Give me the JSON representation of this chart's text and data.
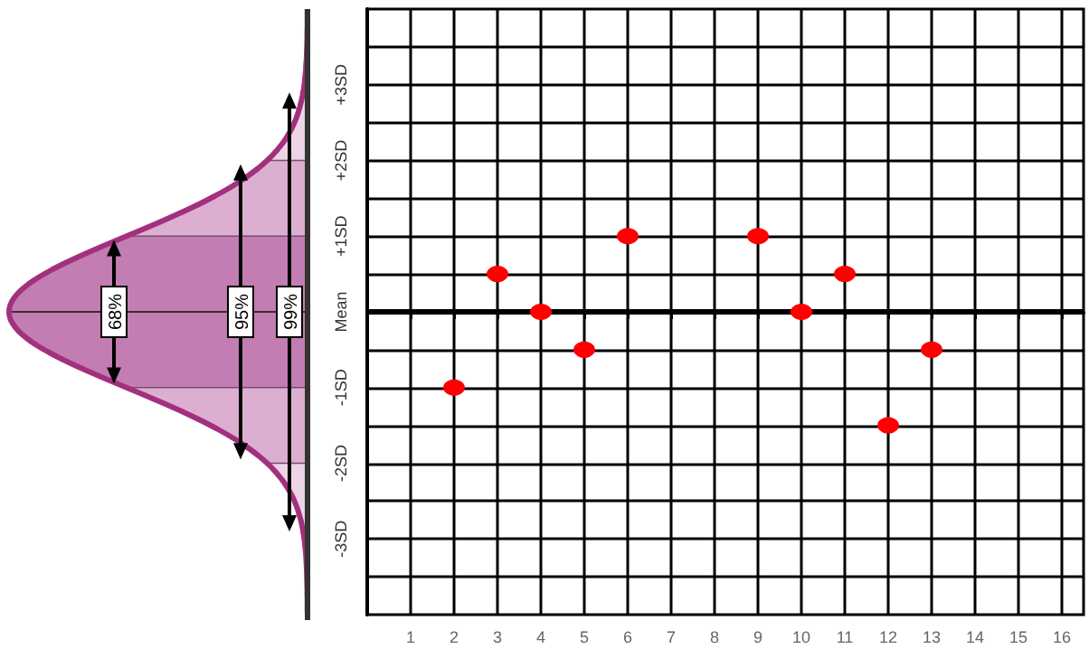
{
  "chart_data": {
    "type": "scatter",
    "x": [
      2,
      3,
      4,
      5,
      6,
      9,
      10,
      11,
      12,
      13
    ],
    "series": [
      {
        "color": "#ff0000",
        "values": [
          -1,
          0.5,
          0,
          -0.5,
          1,
          1,
          0,
          0.5,
          -1.5,
          -0.5
        ]
      }
    ],
    "xlim": [
      0,
      16.5
    ],
    "xticks": [
      1,
      2,
      3,
      4,
      5,
      6,
      7,
      8,
      9,
      10,
      11,
      12,
      13,
      14,
      15,
      16
    ],
    "ylim": [
      -4,
      4
    ],
    "yticks": [
      {
        "value": -3.5,
        "label": null
      },
      {
        "value": -3,
        "label": "-3SD"
      },
      {
        "value": -2.5,
        "label": null
      },
      {
        "value": -2,
        "label": "-2SD"
      },
      {
        "value": -1.5,
        "label": null
      },
      {
        "value": -1,
        "label": "-1SD"
      },
      {
        "value": -0.5,
        "label": null
      },
      {
        "value": 0,
        "label": "Mean"
      },
      {
        "value": 0.5,
        "label": null
      },
      {
        "value": 1,
        "label": "+1SD"
      },
      {
        "value": 1.5,
        "label": null
      },
      {
        "value": 2,
        "label": "+2SD"
      },
      {
        "value": 2.5,
        "label": null
      },
      {
        "value": 3,
        "label": "+3SD"
      },
      {
        "value": 3.5,
        "label": null
      }
    ],
    "ref_lines": [
      {
        "axis": "y",
        "value": 0,
        "color": "#000000"
      }
    ],
    "annotations": [
      "68%",
      "95%",
      "99%"
    ],
    "grid": true,
    "marker": "circle"
  }
}
